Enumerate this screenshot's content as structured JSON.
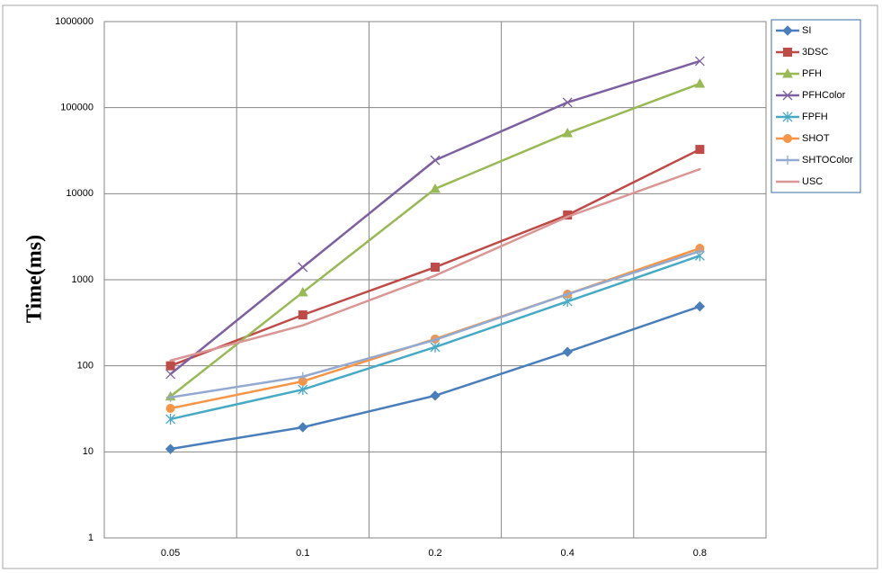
{
  "chart_data": {
    "type": "line",
    "y_label": "Time(ms)",
    "categories": [
      "0.05",
      "0.1",
      "0.2",
      "0.4",
      "0.8"
    ],
    "log_scale": true,
    "grid": true,
    "legend": "right",
    "ylim": [
      1,
      1000000
    ],
    "yticks": [
      1,
      10,
      100,
      1000,
      10000,
      100000,
      1000000
    ],
    "series": [
      {
        "name": "SI",
        "color": "#4a7ebb",
        "marker": "diamond",
        "values": [
          10.8,
          19.3,
          45,
          145,
          490
        ]
      },
      {
        "name": "3DSC",
        "color": "#be4b48",
        "marker": "square",
        "values": [
          100,
          390,
          1400,
          5650,
          32700
        ]
      },
      {
        "name": "PFH",
        "color": "#98b954",
        "marker": "triangle",
        "values": [
          44,
          715,
          11400,
          50500,
          190000
        ]
      },
      {
        "name": "PFHColor",
        "color": "#7d60a0",
        "marker": "x",
        "values": [
          80,
          1400,
          24500,
          115000,
          347000
        ]
      },
      {
        "name": "FPFH",
        "color": "#46aac5",
        "marker": "star",
        "values": [
          24,
          53,
          165,
          560,
          1900
        ]
      },
      {
        "name": "SHOT",
        "color": "#f69546",
        "marker": "circle",
        "values": [
          32,
          66,
          205,
          680,
          2320
        ]
      },
      {
        "name": "SHTOColor",
        "color": "#93a9d0",
        "marker": "plus",
        "values": [
          43,
          75,
          200,
          680,
          2150
        ]
      },
      {
        "name": "USC",
        "color": "#d99694",
        "marker": "none",
        "values": [
          115,
          295,
          1120,
          5400,
          19300
        ]
      }
    ]
  }
}
